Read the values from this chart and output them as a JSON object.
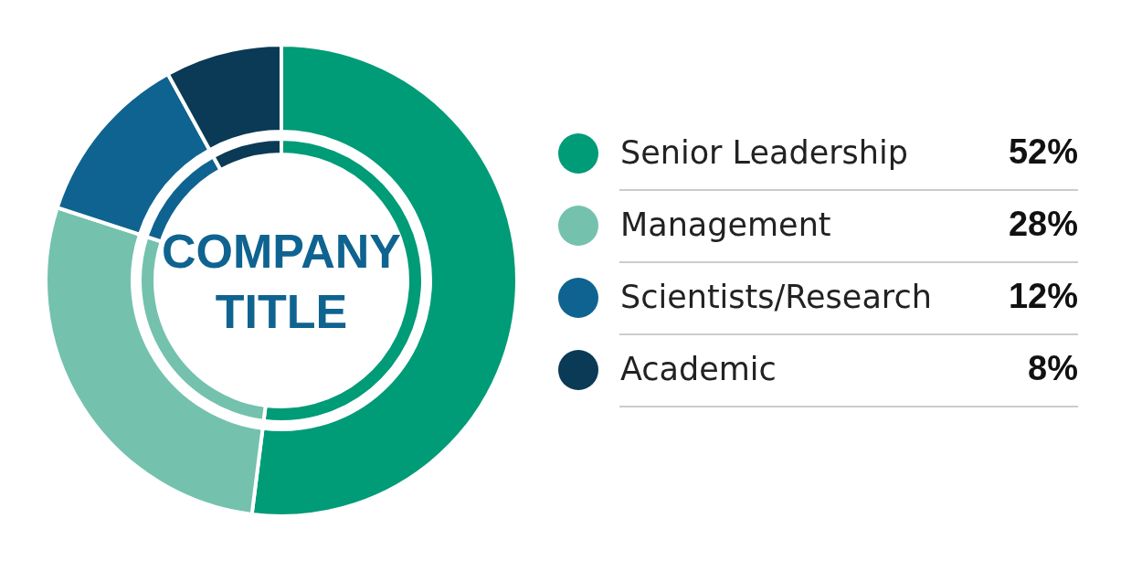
{
  "chart_data": {
    "type": "donut",
    "title": "COMPANY TITLE",
    "categories": [
      "Senior Leadership",
      "Management",
      "Scientists/Research",
      "Academic"
    ],
    "series": [
      {
        "values": [
          52,
          28,
          12,
          8
        ]
      },
      {
        "values": [
          52,
          28,
          12,
          8
        ]
      }
    ],
    "value_labels": [
      "52%",
      "28%",
      "12%",
      "8%"
    ],
    "colors": [
      "#009b77",
      "#74c1ae",
      "#0f6390",
      "#0a3a55"
    ],
    "legend": "right"
  }
}
